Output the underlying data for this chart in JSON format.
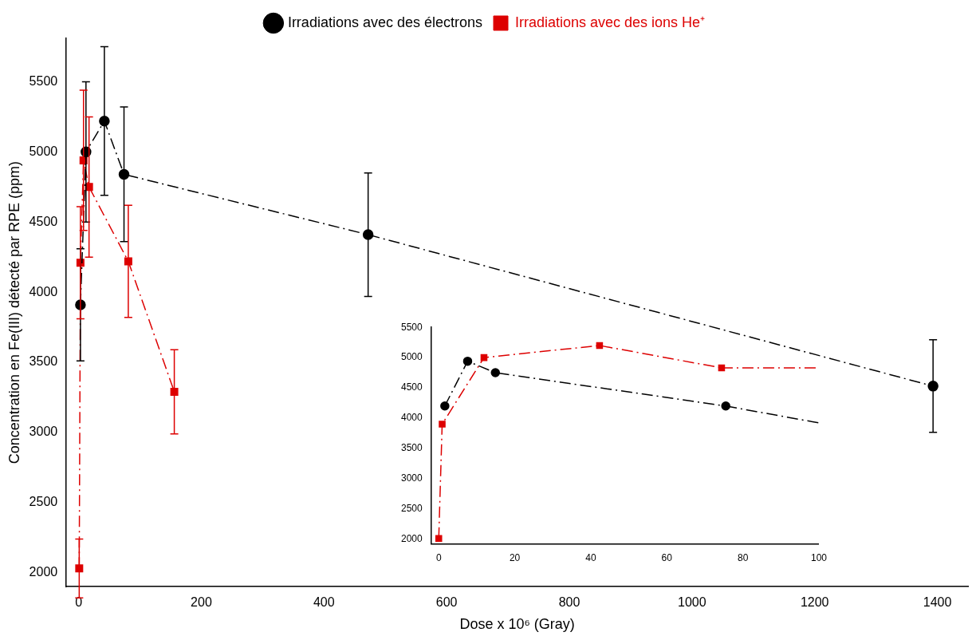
{
  "chart_data": [
    {
      "type": "line",
      "xlabel": "Dose x 10⁶ (Gray)",
      "ylabel": "Concentration en Fe(III) détecté par RPE (ppm)",
      "xlim": [
        -20,
        1450
      ],
      "xticks": [
        0,
        200,
        400,
        600,
        800,
        1000,
        1200,
        1400
      ],
      "ylim": [
        1900,
        5810
      ],
      "yticks": [
        2000,
        2500,
        3000,
        3500,
        4000,
        4500,
        5000,
        5500
      ],
      "legend": "top",
      "line_style": "dashed",
      "grid": false,
      "series": [
        {
          "name": "Irradiations avec des électrons",
          "color": "#000000",
          "marker": "circle",
          "x": [
            3,
            12,
            42,
            74,
            472,
            1393
          ],
          "values": [
            3910,
            5000,
            5220,
            4840,
            4410,
            3330
          ],
          "errors": [
            400,
            500,
            530,
            480,
            440,
            330
          ]
        },
        {
          "name": "Irradiations avec des ions He⁺",
          "color": "#dd0000",
          "marker": "square",
          "x": [
            1,
            3,
            8,
            17,
            81,
            156
          ],
          "values": [
            2030,
            4210,
            4940,
            4750,
            4220,
            3290
          ],
          "errors": [
            210,
            400,
            500,
            500,
            400,
            300
          ]
        }
      ]
    },
    {
      "type": "line",
      "xlim": [
        -2,
        100
      ],
      "xticks": [
        0,
        20,
        40,
        60,
        80,
        100
      ],
      "ylim": [
        1920,
        5500
      ],
      "yticks": [
        2000,
        2500,
        3000,
        3500,
        4000,
        4500,
        5000,
        5500
      ],
      "legend": false,
      "line_style": "dashed",
      "grid": false,
      "series": [
        {
          "color": "#000000",
          "marker": "circle",
          "x": [
            1.6,
            7.6,
            14.9,
            75.5
          ],
          "values": [
            4200,
            4940,
            4750,
            4200
          ]
        },
        {
          "color": "#dd0000",
          "marker": "square",
          "x": [
            0,
            0.9,
            11.9,
            42.3,
            74.4
          ],
          "values": [
            2010,
            3900,
            5000,
            5200,
            4830
          ]
        },
        {
          "color": "#000000",
          "marker": "none",
          "x": [
            75.5,
            100
          ],
          "values": [
            4200,
            3920
          ]
        },
        {
          "color": "#dd0000",
          "marker": "none",
          "x": [
            74.4,
            100
          ],
          "values": [
            4830,
            4830
          ]
        }
      ]
    }
  ]
}
